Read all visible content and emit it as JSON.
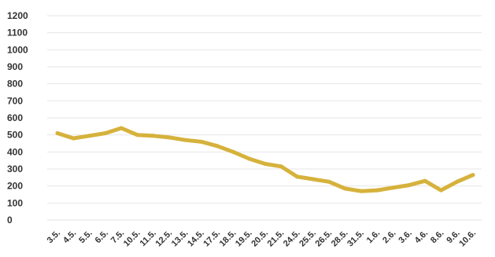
{
  "chart_data": {
    "type": "line",
    "categories": [
      "3.5.",
      "4.5.",
      "5.5.",
      "6.5.",
      "7.5.",
      "10.5.",
      "11.5.",
      "12.5.",
      "13.5.",
      "14.5.",
      "17.5.",
      "18.5.",
      "19.5.",
      "20.5.",
      "21.5.",
      "24.5.",
      "25.5.",
      "26.5.",
      "28.5.",
      "31.5.",
      "1.6.",
      "2.6.",
      "3.6.",
      "4.6.",
      "8.6.",
      "9.6.",
      "10.6."
    ],
    "series": [
      {
        "values": [
          510,
          480,
          495,
          510,
          540,
          500,
          495,
          485,
          470,
          460,
          435,
          400,
          360,
          330,
          315,
          255,
          240,
          225,
          185,
          170,
          175,
          190,
          205,
          230,
          175,
          225,
          265
        ],
        "color": "#d6b23c"
      }
    ],
    "y_ticks": [
      0,
      100,
      200,
      300,
      400,
      500,
      600,
      700,
      800,
      900,
      1000,
      1100,
      1200
    ],
    "ylim": [
      0,
      1200
    ],
    "grid": true,
    "legend": "none"
  }
}
